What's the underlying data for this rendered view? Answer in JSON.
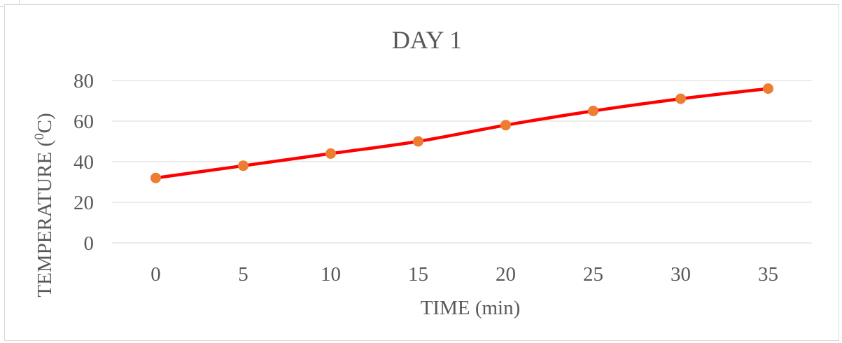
{
  "chart_data": {
    "type": "line",
    "title": "DAY 1",
    "xlabel": "TIME (min)",
    "ylabel_parts": {
      "before": "TEMPERATURE (",
      "superscript": "0",
      "after": "C)"
    },
    "x": [
      0,
      5,
      10,
      15,
      20,
      25,
      30,
      35
    ],
    "series": [
      {
        "values": [
          32,
          38,
          44,
          50,
          58,
          65,
          71,
          76
        ],
        "line_color": "#ff0000",
        "marker_color": "#ed7d31"
      }
    ],
    "ylim": [
      0,
      80
    ],
    "yticks": [
      0,
      20,
      40,
      60,
      80
    ],
    "grid": true,
    "legend": "none",
    "gridline_color": "#d9d9d9",
    "text_color": "#595959"
  }
}
